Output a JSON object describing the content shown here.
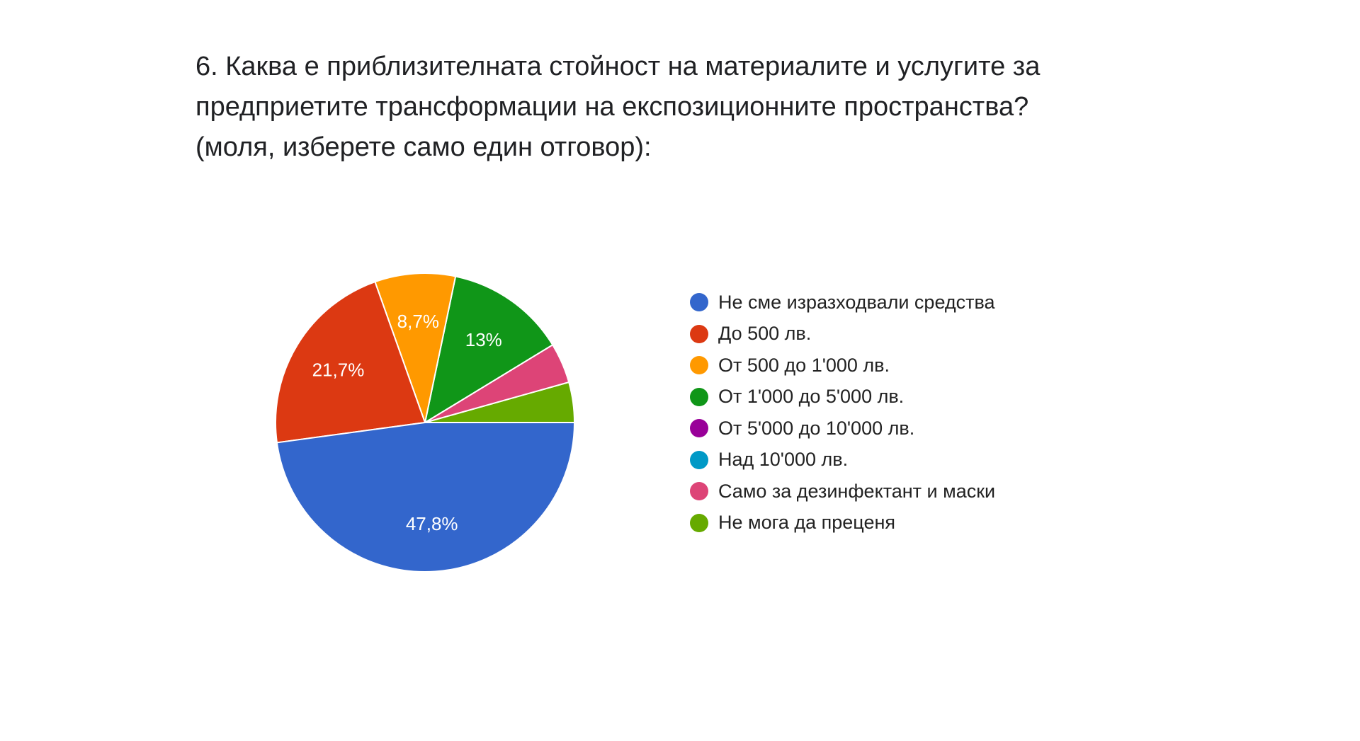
{
  "question": {
    "title": "6. Каква е приблизителната стойност на материалите и услугите за\nпредприетите трансформации на експозиционните пространства?\n(моля, изберете само един отговор):"
  },
  "chart_data": {
    "type": "pie",
    "legend_position": "right",
    "series": [
      {
        "name": "Не сме изразходвали средства",
        "value": 47.8,
        "color": "#3366cc",
        "label": "47,8%"
      },
      {
        "name": "До 500 лв.",
        "value": 21.7,
        "color": "#dc3912",
        "label": "21,7%"
      },
      {
        "name": "От 500 до 1'000 лв.",
        "value": 8.7,
        "color": "#ff9900",
        "label": "8,7%"
      },
      {
        "name": "От 1'000 до 5'000 лв.",
        "value": 13.0,
        "color": "#109618",
        "label": "13%"
      },
      {
        "name": "От 5'000 до 10'000 лв.",
        "value": 0,
        "color": "#990099",
        "label": ""
      },
      {
        "name": "Над 10'000 лв.",
        "value": 0,
        "color": "#0099c6",
        "label": ""
      },
      {
        "name": "Само за дезинфектант и маски",
        "value": 4.35,
        "color": "#dd4477",
        "label": ""
      },
      {
        "name": "Не мога да преценя",
        "value": 4.35,
        "color": "#66aa00",
        "label": ""
      }
    ]
  }
}
